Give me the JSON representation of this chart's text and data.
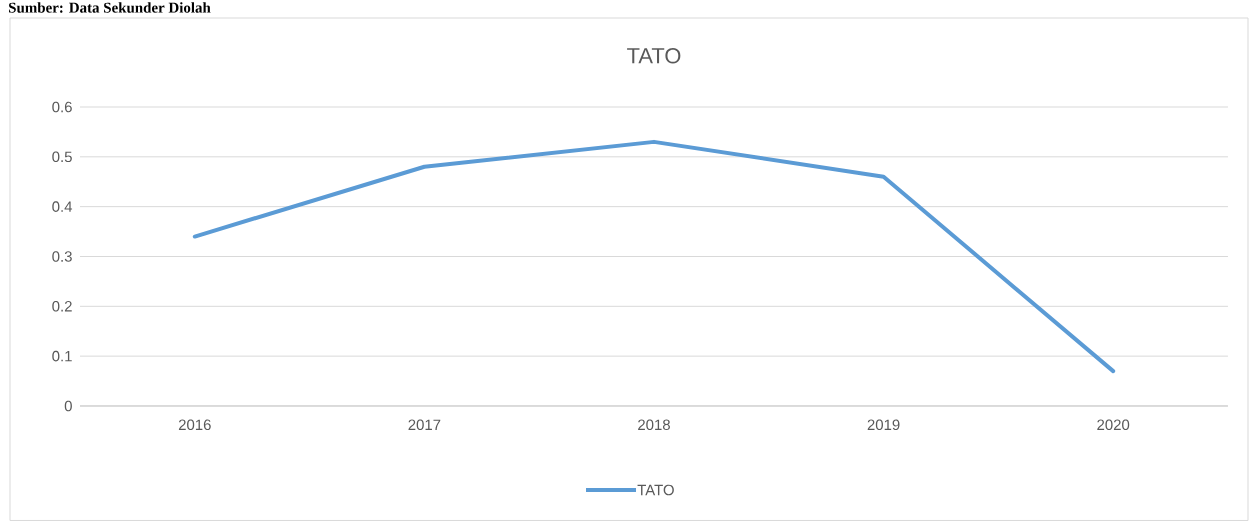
{
  "chart_data": {
    "type": "line",
    "title": "TATO",
    "categories": [
      "2016",
      "2017",
      "2018",
      "2019",
      "2020"
    ],
    "series": [
      {
        "name": "TATO",
        "color": "#5b9bd5",
        "values": [
          0.34,
          0.48,
          0.53,
          0.46,
          0.07
        ]
      }
    ],
    "ylim": [
      0,
      0.6
    ],
    "yticks": [
      0,
      0.1,
      0.2,
      0.3,
      0.4,
      0.5,
      0.6
    ],
    "grid": "y",
    "legend": "bottom",
    "line_style": "solid",
    "annotations": [
      "Sumber: Data Sekunder Diolah"
    ]
  }
}
